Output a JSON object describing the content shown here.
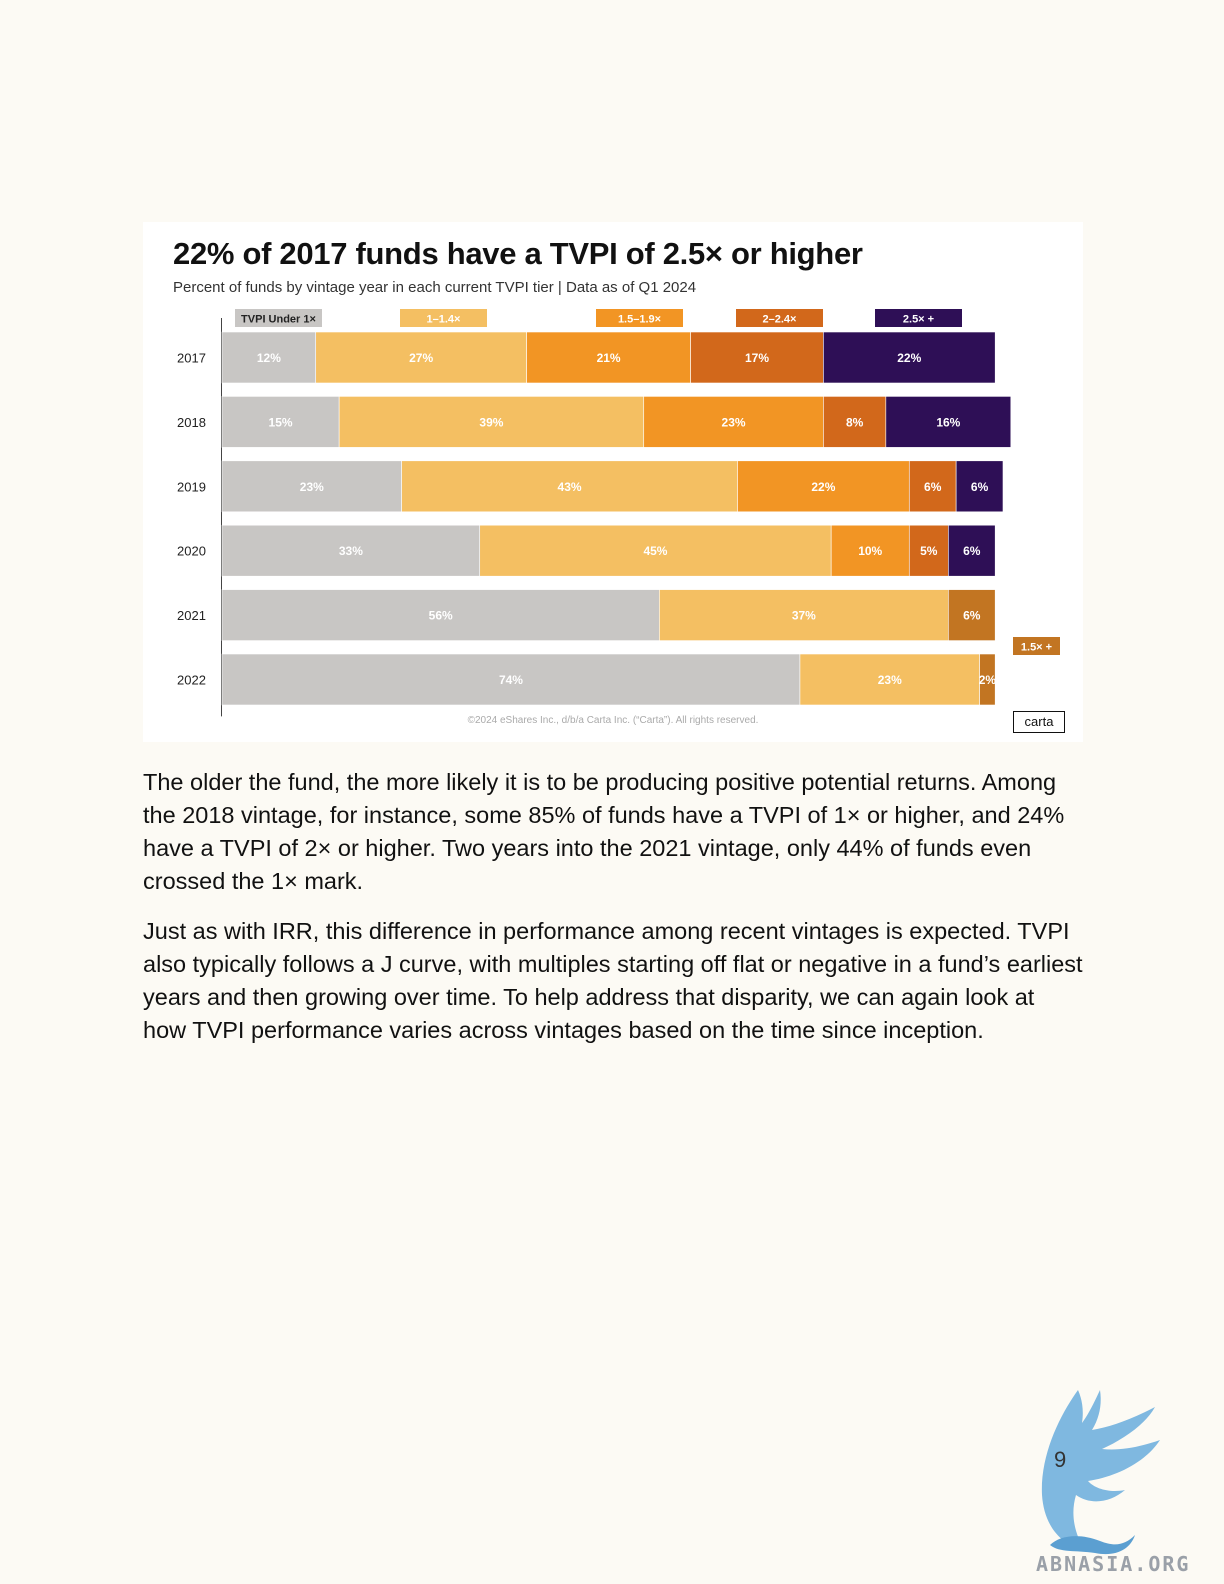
{
  "chart_data": {
    "type": "bar",
    "orientation": "horizontal-stacked-100",
    "title": "22% of 2017 funds have a TVPI of 2.5× or higher",
    "subtitle": "Percent of funds by vintage year in each current TVPI tier  |  Data as of Q1 2024",
    "categories": [
      "2017",
      "2018",
      "2019",
      "2020",
      "2021",
      "2022"
    ],
    "series": [
      {
        "name": "TVPI Under 1×",
        "color": "#c8c6c4",
        "values": [
          12,
          15,
          23,
          33,
          56,
          74
        ],
        "labels": [
          "12%",
          "15%",
          "23%",
          "33%",
          "56%",
          "74%"
        ]
      },
      {
        "name": "1–1.4×",
        "color": "#f4bf62",
        "values": [
          27,
          39,
          43,
          45,
          37,
          23
        ],
        "labels": [
          "27%",
          "39%",
          "43%",
          "45%",
          "37%",
          "23%"
        ]
      },
      {
        "name": "1.5–1.9×",
        "color": "#f29524",
        "values": [
          21,
          23,
          22,
          10,
          null,
          null
        ],
        "labels": [
          "21%",
          "23%",
          "22%",
          "10%",
          "",
          ""
        ]
      },
      {
        "name": "2–2.4×",
        "color": "#d2681b",
        "values": [
          17,
          8,
          6,
          5,
          null,
          null
        ],
        "labels": [
          "17%",
          "8%",
          "6%",
          "5%",
          "",
          ""
        ]
      },
      {
        "name": "2.5× +",
        "color": "#2e0f56",
        "values": [
          22,
          16,
          6,
          6,
          null,
          null
        ],
        "labels": [
          "22%",
          "16%",
          "6%",
          "6%",
          "",
          ""
        ]
      },
      {
        "name": "1.5× +",
        "color": "#c27522",
        "values": [
          null,
          null,
          null,
          null,
          6,
          2
        ],
        "labels": [
          "",
          "",
          "",
          "",
          "6%",
          "2%"
        ]
      }
    ],
    "xlim": [
      0,
      100
    ],
    "grid": false,
    "legend": "top",
    "copyright": "©2024 eShares Inc., d/b/a Carta Inc. (“Carta”). All rights reserved.",
    "logo": "carta"
  },
  "body": {
    "paragraphs": [
      "The older the fund, the more likely it is to be producing positive potential returns. Among the 2018 vintage, for instance, some 85% of funds have a TVPI of 1× or higher, and 24% have a TVPI of 2× or higher. Two years into the 2021 vintage, only 44% of funds even crossed the 1× mark.",
      "Just as with IRR, this difference in performance among recent vintages is expected. TVPI also typically follows a J curve, with multiples starting off flat or negative in a fund’s earliest years and then growing over time. To help address that disparity, we can again look at how TVPI performance varies across vintages based on the time since inception."
    ]
  },
  "footer": {
    "page_number": "9",
    "watermark_text": "ABNASIA.ORG",
    "watermark_icon": "winged-griffin-icon"
  }
}
